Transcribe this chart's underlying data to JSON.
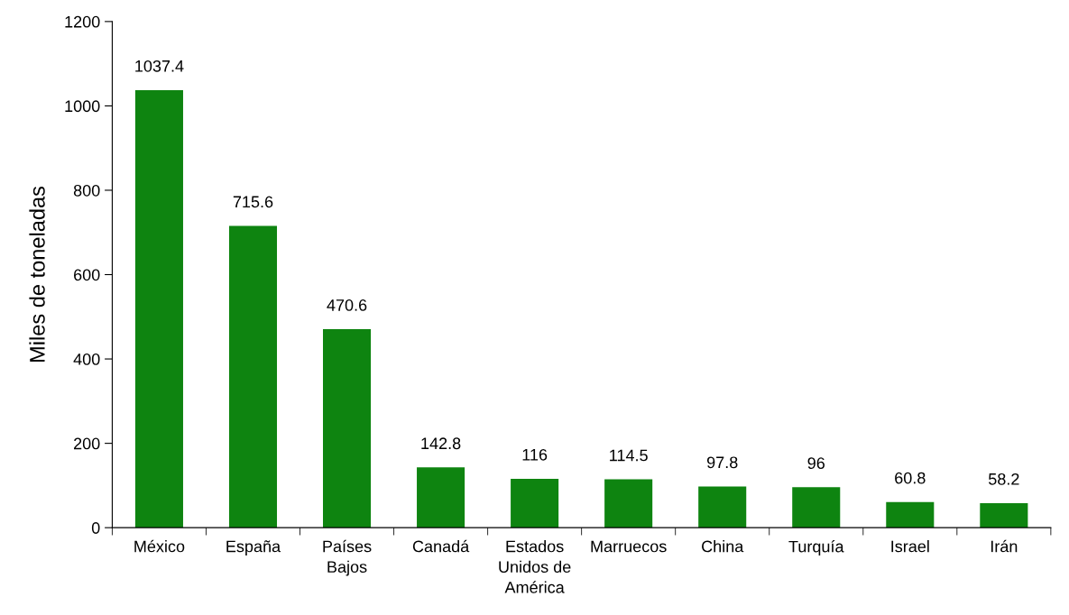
{
  "chart_data": {
    "type": "bar",
    "ylabel": "Miles de toneladas",
    "categories": [
      "México",
      "España",
      "Países\nBajos",
      "Canadá",
      "Estados\nUnidos de\nAmérica",
      "Marruecos",
      "China",
      "Turquía",
      "Israel",
      "Irán"
    ],
    "values": [
      1037.4,
      715.6,
      470.6,
      142.8,
      116,
      114.5,
      97.8,
      96,
      60.8,
      58.2
    ],
    "color": "#0e8410",
    "ylim": [
      0,
      1200
    ],
    "yticks": [
      0,
      200,
      400,
      600,
      800,
      1000,
      1200
    ],
    "data_labels": true,
    "grid": false,
    "legend": false
  }
}
